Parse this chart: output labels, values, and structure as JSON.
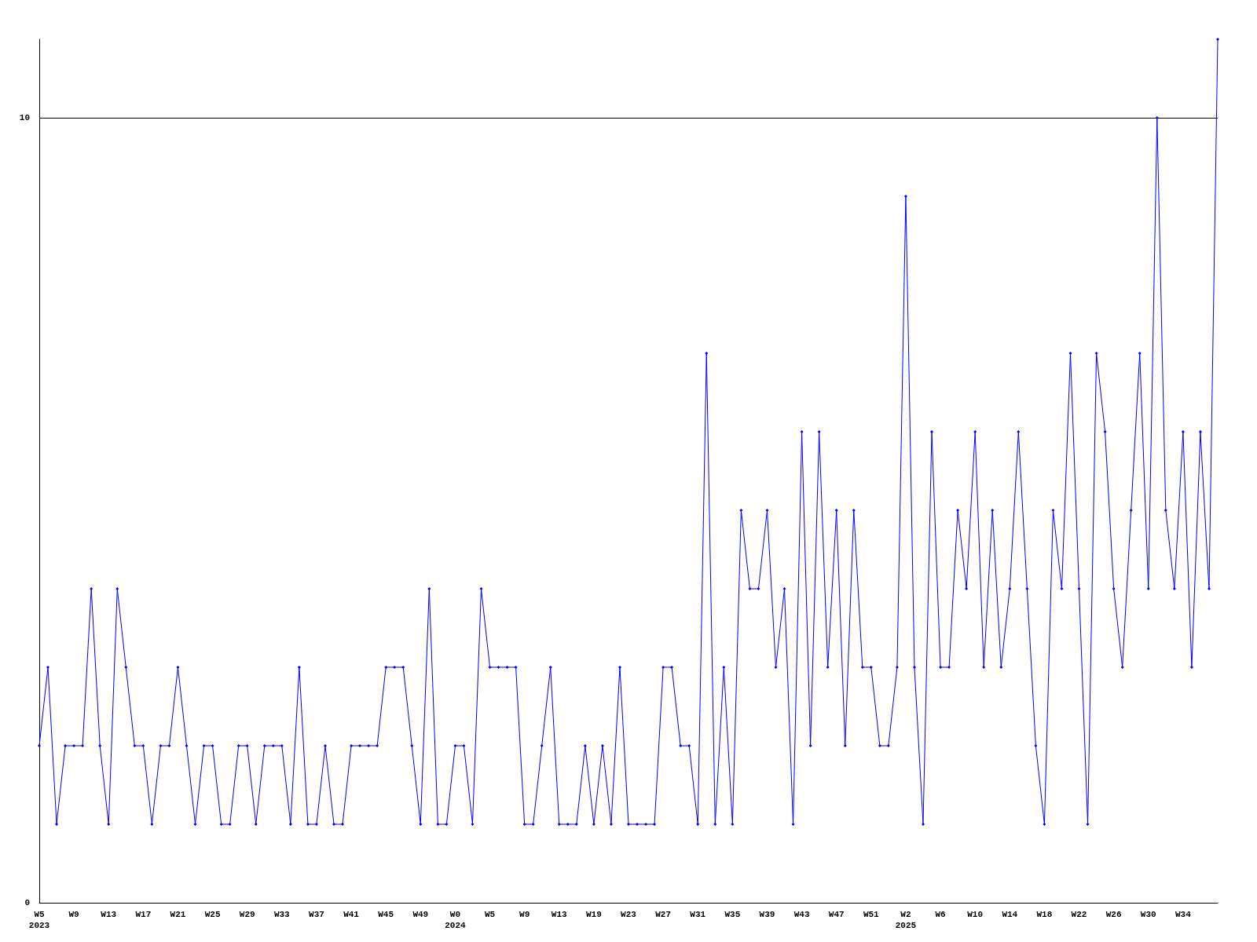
{
  "chart_data": {
    "type": "line",
    "categories": [
      "W5\n2023",
      null,
      null,
      null,
      "W9",
      null,
      null,
      null,
      "W13",
      null,
      null,
      null,
      "W17",
      null,
      null,
      null,
      "W21",
      null,
      null,
      null,
      "W25",
      null,
      null,
      null,
      "W29",
      null,
      null,
      null,
      "W33",
      null,
      null,
      null,
      "W37",
      null,
      null,
      null,
      "W41",
      null,
      null,
      null,
      "W45",
      null,
      null,
      null,
      "W49",
      null,
      null,
      null,
      "W0\n2024",
      null,
      null,
      null,
      "W5",
      null,
      null,
      null,
      "W9",
      null,
      null,
      null,
      "W13",
      null,
      null,
      null,
      "W19",
      null,
      null,
      null,
      "W23",
      null,
      null,
      null,
      "W27",
      null,
      null,
      null,
      "W31",
      null,
      null,
      null,
      "W35",
      null,
      null,
      null,
      "W39",
      null,
      null,
      null,
      "W43",
      null,
      null,
      null,
      "W47",
      null,
      null,
      null,
      "W51",
      null,
      null,
      null,
      "W2\n2025",
      null,
      null,
      null,
      "W6",
      null,
      null,
      null,
      "W10",
      null,
      null,
      null,
      "W14",
      null,
      null,
      null,
      "W18",
      null,
      null,
      null,
      "W22",
      null,
      null,
      null,
      "W26",
      null,
      null,
      null,
      "W30",
      null,
      null,
      null,
      "W34",
      null,
      null,
      null,
      null
    ],
    "series": [
      {
        "color": "#0000ff",
        "values": [
          2,
          3,
          1,
          2,
          2,
          2,
          4,
          2,
          1,
          4,
          3,
          2,
          2,
          1,
          2,
          2,
          3,
          2,
          1,
          2,
          2,
          1,
          1,
          2,
          2,
          1,
          2,
          2,
          2,
          1,
          3,
          1,
          1,
          2,
          1,
          1,
          2,
          2,
          2,
          2,
          3,
          3,
          3,
          2,
          1,
          4,
          1,
          1,
          2,
          2,
          1,
          4,
          3,
          3,
          3,
          3,
          1,
          1,
          2,
          3,
          1,
          1,
          1,
          2,
          1,
          2,
          1,
          3,
          1,
          1,
          1,
          1,
          3,
          3,
          2,
          2,
          1,
          7,
          1,
          3,
          1,
          5,
          4,
          4,
          5,
          3,
          4,
          1,
          6,
          2,
          6,
          3,
          5,
          2,
          5,
          3,
          3,
          2,
          2,
          3,
          9,
          3,
          1,
          6,
          3,
          3,
          5,
          4,
          6,
          3,
          5,
          3,
          4,
          6,
          4,
          2,
          1,
          5,
          4,
          7,
          4,
          1,
          7,
          6,
          4,
          3,
          5,
          7,
          4,
          10,
          5,
          4,
          6,
          3,
          6,
          4,
          11
        ]
      }
    ],
    "ylim": [
      0,
      11
    ],
    "yticks": [
      0,
      10
    ],
    "grid": "y",
    "marker": "diamond",
    "line_style": "solid"
  }
}
